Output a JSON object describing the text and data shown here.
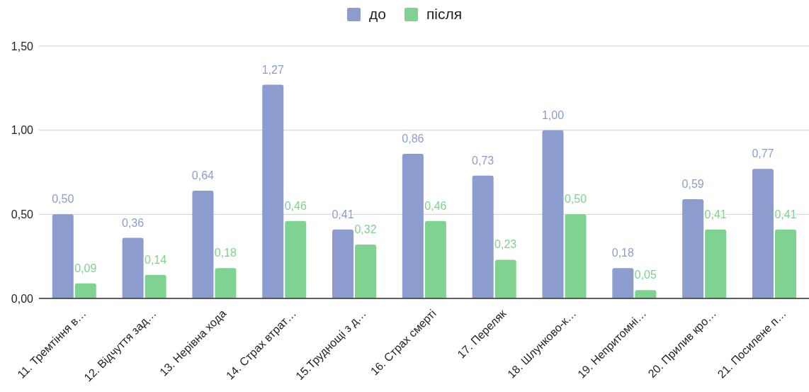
{
  "chart_data": {
    "type": "bar",
    "legend": "top",
    "grid": "y",
    "categories": [
      "11. Тремтіння в…",
      "12. Відчуття зад…",
      "13. Нерівна хода",
      "14. Страх втрат…",
      "15.Труднощі з д…",
      "16. Страх смерті",
      "17. Переляк",
      "18. Шлунково-к…",
      "19. Непритомні…",
      "20. Прилив кро…",
      "21. Посилене п…"
    ],
    "series": [
      {
        "name": "до",
        "color": "#8c9ccf",
        "values": [
          0.5,
          0.36,
          0.64,
          1.27,
          0.41,
          0.86,
          0.73,
          1.0,
          0.18,
          0.59,
          0.77
        ],
        "value_labels": [
          "0,50",
          "0,36",
          "0,64",
          "1,27",
          "0,41",
          "0,86",
          "0,73",
          "1,00",
          "0,18",
          "0,59",
          "0,77"
        ]
      },
      {
        "name": "після",
        "color": "#80d290",
        "values": [
          0.09,
          0.14,
          0.18,
          0.46,
          0.32,
          0.46,
          0.23,
          0.5,
          0.05,
          0.41,
          0.41
        ],
        "value_labels": [
          "0,09",
          "0,14",
          "0,18",
          "0,46",
          "0,32",
          "0,46",
          "0,23",
          "0,50",
          "0,05",
          "0,41",
          "0,41"
        ]
      }
    ],
    "ylim": [
      0,
      1.5
    ],
    "yticks": [
      {
        "value": 0,
        "label": "0,00"
      },
      {
        "value": 0.5,
        "label": "0,50"
      },
      {
        "value": 1,
        "label": "1,00"
      },
      {
        "value": 1.5,
        "label": "1,50"
      }
    ]
  }
}
